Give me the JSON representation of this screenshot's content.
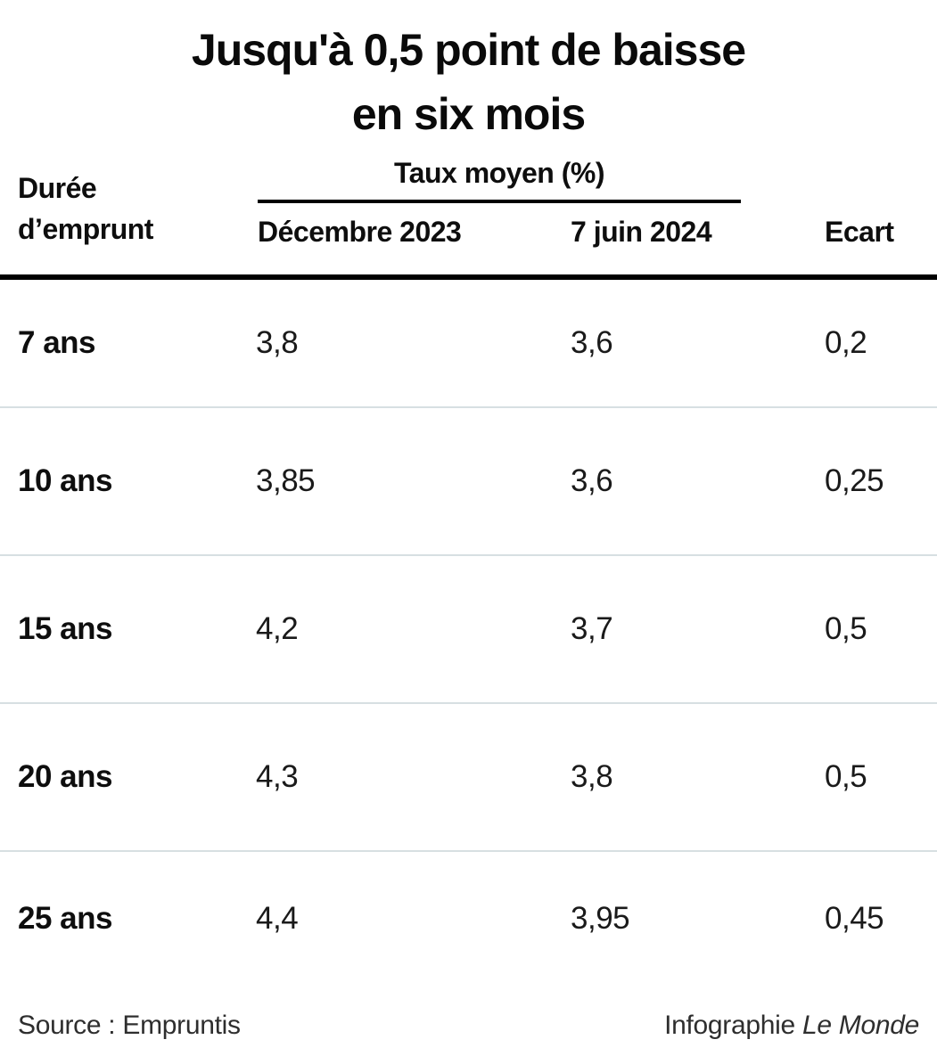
{
  "title": {
    "line1": "Jusqu'à 0,5 point de baisse",
    "line2": "en six mois"
  },
  "header": {
    "row_dimension": {
      "line1": "Durée",
      "line2": "d’emprunt"
    },
    "group_label": "Taux moyen (%)",
    "col_dec2023": "Décembre 2023",
    "col_jun2024": "7 juin 2024",
    "col_ecart": "Ecart"
  },
  "table": {
    "rows": [
      {
        "label": "7 ans",
        "dec2023": "3,8",
        "jun2024": "3,6",
        "ecart": "0,2"
      },
      {
        "label": "10 ans",
        "dec2023": "3,85",
        "jun2024": "3,6",
        "ecart": "0,25"
      },
      {
        "label": "15 ans",
        "dec2023": "4,2",
        "jun2024": "3,7",
        "ecart": "0,5"
      },
      {
        "label": "20 ans",
        "dec2023": "4,3",
        "jun2024": "3,8",
        "ecart": "0,5"
      },
      {
        "label": "25 ans",
        "dec2023": "4,4",
        "jun2024": "3,95",
        "ecart": "0,45"
      }
    ]
  },
  "footer": {
    "source": "Source : Empruntis",
    "credit_prefix": "Infographie",
    "credit_brand": "Le Monde"
  },
  "colors": {
    "text": "#111111",
    "separator": "#d7dfe2",
    "rule": "#000000",
    "background": "#ffffff"
  },
  "chart_data": {
    "type": "table",
    "title": "Jusqu'à 0,5 point de baisse en six mois",
    "group_header": "Taux moyen (%)",
    "columns": [
      "Durée d’emprunt",
      "Décembre 2023",
      "7 juin 2024",
      "Ecart"
    ],
    "rows": [
      [
        "7 ans",
        3.8,
        3.6,
        0.2
      ],
      [
        "10 ans",
        3.85,
        3.6,
        0.25
      ],
      [
        "15 ans",
        4.2,
        3.7,
        0.5
      ],
      [
        "20 ans",
        4.3,
        3.8,
        0.5
      ],
      [
        "25 ans",
        4.4,
        3.95,
        0.45
      ]
    ],
    "units": "percent",
    "source": "Empruntis",
    "credit": "Infographie Le Monde"
  }
}
